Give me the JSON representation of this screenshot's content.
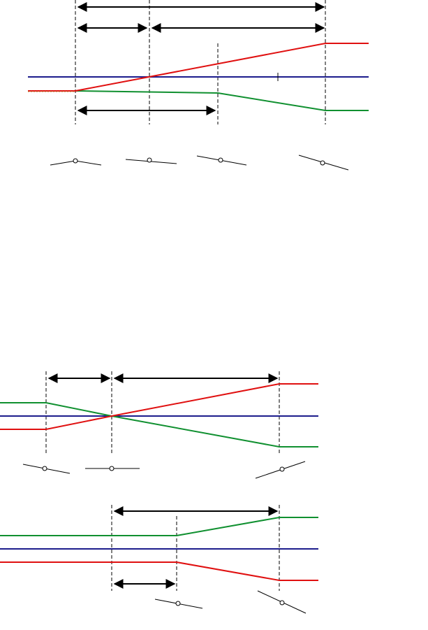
{
  "colors": {
    "reference_line": "#1c1c8c",
    "profile_red": "#e01010",
    "profile_green": "#109030",
    "annotation": "#000000"
  },
  "panels": [
    {
      "name": "top",
      "dimension_arrows": 4,
      "vertical_markers": 4,
      "profiles": [
        "reference",
        "red",
        "green"
      ],
      "rail_sketches": 4
    },
    {
      "name": "middle",
      "dimension_arrows": 2,
      "vertical_markers": 3,
      "profiles": [
        "reference",
        "red",
        "green"
      ],
      "rail_sketches": 3
    },
    {
      "name": "bottom",
      "dimension_arrows": 2,
      "vertical_markers": 3,
      "profiles": [
        "reference",
        "red",
        "green"
      ],
      "rail_sketches": 2
    }
  ]
}
